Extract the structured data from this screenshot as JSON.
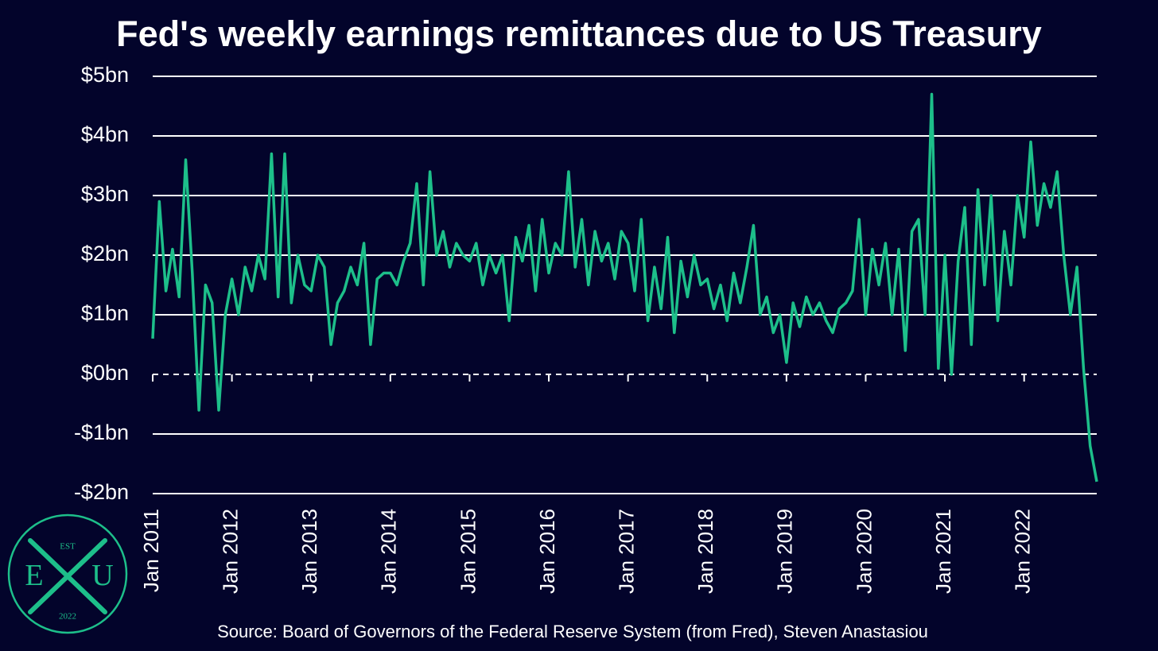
{
  "chart_data": {
    "type": "line",
    "title": "Fed's weekly earnings remittances due to US Treasury",
    "source": "Source: Board of Governors of the Federal Reserve System (from Fred), Steven Anastasiou",
    "color": "#1dbf8a",
    "grid": true,
    "zero_line_style": "dashed",
    "ylim": [
      -2,
      5
    ],
    "yticks": [
      {
        "value": -2,
        "label": "-$2bn"
      },
      {
        "value": -1,
        "label": "-$1bn"
      },
      {
        "value": 0,
        "label": "$0bn"
      },
      {
        "value": 1,
        "label": "$1bn"
      },
      {
        "value": 2,
        "label": "$2bn"
      },
      {
        "value": 3,
        "label": "$3bn"
      },
      {
        "value": 4,
        "label": "$4bn"
      },
      {
        "value": 5,
        "label": "$5bn"
      }
    ],
    "xlim": [
      "2011-01",
      "2022-12"
    ],
    "xticks": [
      {
        "value": "2011-01",
        "label": "Jan 2011"
      },
      {
        "value": "2012-01",
        "label": "Jan 2012"
      },
      {
        "value": "2013-01",
        "label": "Jan 2013"
      },
      {
        "value": "2014-01",
        "label": "Jan 2014"
      },
      {
        "value": "2015-01",
        "label": "Jan 2015"
      },
      {
        "value": "2016-01",
        "label": "Jan 2016"
      },
      {
        "value": "2017-01",
        "label": "Jan 2017"
      },
      {
        "value": "2018-01",
        "label": "Jan 2018"
      },
      {
        "value": "2019-01",
        "label": "Jan 2019"
      },
      {
        "value": "2020-01",
        "label": "Jan 2020"
      },
      {
        "value": "2021-01",
        "label": "Jan 2021"
      },
      {
        "value": "2022-01",
        "label": "Jan 2022"
      }
    ],
    "x": [
      "2011-01",
      "2011-02",
      "2011-03",
      "2011-04",
      "2011-05",
      "2011-06",
      "2011-07",
      "2011-08",
      "2011-09",
      "2011-10",
      "2011-11",
      "2011-12",
      "2012-01",
      "2012-02",
      "2012-03",
      "2012-04",
      "2012-05",
      "2012-06",
      "2012-07",
      "2012-08",
      "2012-09",
      "2012-10",
      "2012-11",
      "2012-12",
      "2013-01",
      "2013-02",
      "2013-03",
      "2013-04",
      "2013-05",
      "2013-06",
      "2013-07",
      "2013-08",
      "2013-09",
      "2013-10",
      "2013-11",
      "2013-12",
      "2014-01",
      "2014-02",
      "2014-03",
      "2014-04",
      "2014-05",
      "2014-06",
      "2014-07",
      "2014-08",
      "2014-09",
      "2014-10",
      "2014-11",
      "2014-12",
      "2015-01",
      "2015-02",
      "2015-03",
      "2015-04",
      "2015-05",
      "2015-06",
      "2015-07",
      "2015-08",
      "2015-09",
      "2015-10",
      "2015-11",
      "2015-12",
      "2016-01",
      "2016-02",
      "2016-03",
      "2016-04",
      "2016-05",
      "2016-06",
      "2016-07",
      "2016-08",
      "2016-09",
      "2016-10",
      "2016-11",
      "2016-12",
      "2017-01",
      "2017-02",
      "2017-03",
      "2017-04",
      "2017-05",
      "2017-06",
      "2017-07",
      "2017-08",
      "2017-09",
      "2017-10",
      "2017-11",
      "2017-12",
      "2018-01",
      "2018-02",
      "2018-03",
      "2018-04",
      "2018-05",
      "2018-06",
      "2018-07",
      "2018-08",
      "2018-09",
      "2018-10",
      "2018-11",
      "2018-12",
      "2019-01",
      "2019-02",
      "2019-03",
      "2019-04",
      "2019-05",
      "2019-06",
      "2019-07",
      "2019-08",
      "2019-09",
      "2019-10",
      "2019-11",
      "2019-12",
      "2020-01",
      "2020-02",
      "2020-03",
      "2020-04",
      "2020-05",
      "2020-06",
      "2020-07",
      "2020-08",
      "2020-09",
      "2020-10",
      "2020-11",
      "2020-12",
      "2021-01",
      "2021-02",
      "2021-03",
      "2021-04",
      "2021-05",
      "2021-06",
      "2021-07",
      "2021-08",
      "2021-09",
      "2021-10",
      "2021-11",
      "2021-12",
      "2022-01",
      "2022-02",
      "2022-03",
      "2022-04",
      "2022-05",
      "2022-06",
      "2022-07",
      "2022-08",
      "2022-09",
      "2022-10",
      "2022-11",
      "2022-12"
    ],
    "values": [
      0.6,
      2.9,
      1.4,
      2.1,
      1.3,
      3.6,
      1.7,
      -0.6,
      1.5,
      1.2,
      -0.6,
      1.0,
      1.6,
      1.0,
      1.8,
      1.4,
      2.0,
      1.6,
      3.7,
      1.3,
      3.7,
      1.2,
      2.0,
      1.5,
      1.4,
      2.0,
      1.8,
      0.5,
      1.2,
      1.4,
      1.8,
      1.5,
      2.2,
      0.5,
      1.6,
      1.7,
      1.7,
      1.5,
      1.9,
      2.2,
      3.2,
      1.5,
      3.4,
      2.0,
      2.4,
      1.8,
      2.2,
      2.0,
      1.9,
      2.2,
      1.5,
      2.0,
      1.7,
      2.0,
      0.9,
      2.3,
      1.9,
      2.5,
      1.4,
      2.6,
      1.7,
      2.2,
      2.0,
      3.4,
      1.8,
      2.6,
      1.5,
      2.4,
      1.9,
      2.2,
      1.6,
      2.4,
      2.2,
      1.4,
      2.6,
      0.9,
      1.8,
      1.1,
      2.3,
      0.7,
      1.9,
      1.3,
      2.0,
      1.5,
      1.6,
      1.1,
      1.5,
      0.9,
      1.7,
      1.2,
      1.8,
      2.5,
      1.0,
      1.3,
      0.7,
      1.0,
      0.2,
      1.2,
      0.8,
      1.3,
      1.0,
      1.2,
      0.9,
      0.7,
      1.1,
      1.2,
      1.4,
      2.6,
      1.0,
      2.1,
      1.5,
      2.2,
      1.0,
      2.1,
      0.4,
      2.4,
      2.6,
      1.0,
      4.7,
      0.1,
      2.0,
      0.0,
      1.9,
      2.8,
      0.5,
      3.1,
      1.5,
      3.0,
      0.9,
      2.4,
      1.5,
      3.0,
      2.3,
      3.9,
      2.5,
      3.2,
      2.8,
      3.4,
      2.0,
      1.0,
      1.8,
      0.1,
      -1.2,
      -1.8
    ]
  },
  "logo": {
    "top": "EST",
    "left": "E",
    "right": "U",
    "bottom": "2022"
  }
}
